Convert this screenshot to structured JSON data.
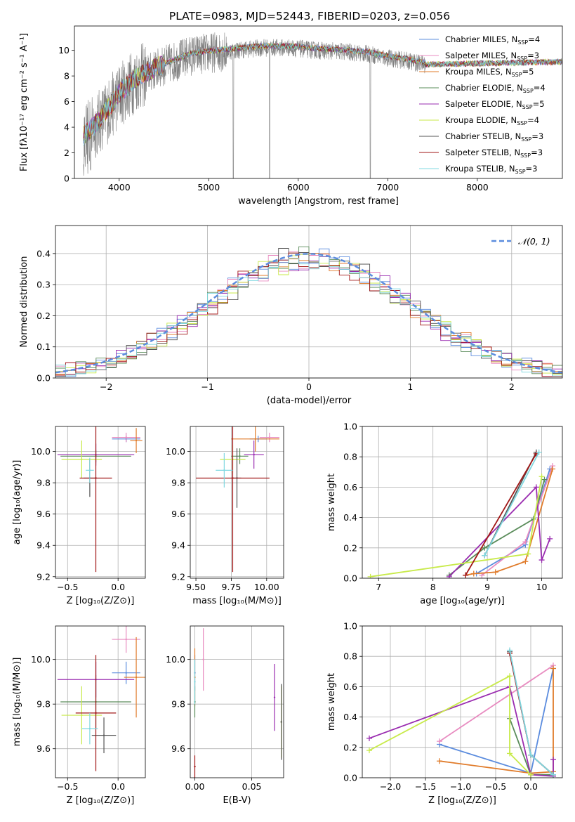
{
  "figure_title": "PLATE=0983, MJD=52443, FIBERID=0203, z=0.056",
  "colors": {
    "Chabrier MILES": "#5b8cde",
    "Salpeter MILES": "#e88bc0",
    "Kroupa MILES": "#e07b2a",
    "Chabrier ELODIE": "#5a8c5a",
    "Salpeter ELODIE": "#9a2cb0",
    "Kroupa ELODIE": "#c8ea4a",
    "Chabrier STELIB": "#555555",
    "Salpeter STELIB": "#a01515",
    "Kroupa STELIB": "#7fd8e0",
    "gaussian": "#5b8cde",
    "data": "#808080"
  },
  "chart_data": [
    {
      "type": "line",
      "title": "PLATE=0983, MJD=52443, FIBERID=0203, z=0.056",
      "xlabel": "wavelength [Angstrom, rest frame]",
      "ylabel": "Flux [fλ10⁻¹⁷ erg cm⁻² s⁻¹ A⁻¹]",
      "xlim": [
        3500,
        8950
      ],
      "ylim": [
        0,
        11.9
      ],
      "xticks": [
        4000,
        5000,
        6000,
        7000,
        8000
      ],
      "yticks": [
        0,
        2,
        4,
        6,
        8,
        10
      ],
      "legend": "top-right",
      "legend_entries": [
        {
          "label": "Chabrier MILES, N",
          "sub": "SSP",
          "tail": "=4"
        },
        {
          "label": "Salpeter MILES, N",
          "sub": "SSP",
          "tail": "=3"
        },
        {
          "label": "Kroupa MILES, N",
          "sub": "SSP",
          "tail": "=5"
        },
        {
          "label": "Chabrier ELODIE, N",
          "sub": "SSP",
          "tail": "=4"
        },
        {
          "label": "Salpeter ELODIE, N",
          "sub": "SSP",
          "tail": "=5"
        },
        {
          "label": "Kroupa ELODIE, N",
          "sub": "SSP",
          "tail": "=4"
        },
        {
          "label": "Chabrier STELIB, N",
          "sub": "SSP",
          "tail": "=3"
        },
        {
          "label": "Salpeter STELIB, N",
          "sub": "SSP",
          "tail": "=3"
        },
        {
          "label": "Kroupa STELIB, N",
          "sub": "SSP",
          "tail": "=3"
        }
      ],
      "spectrum_envelope": {
        "x": [
          3600,
          3750,
          3900,
          4000,
          4200,
          4500,
          4800,
          5000,
          5300,
          5600,
          5900,
          6200,
          6500,
          6800,
          7000,
          7200,
          7420
        ],
        "y": [
          3.2,
          4.2,
          5.5,
          6.5,
          7.8,
          8.8,
          9.6,
          9.8,
          10.0,
          10.2,
          10.2,
          10.0,
          9.9,
          9.7,
          9.4,
          9.2,
          8.9
        ]
      },
      "model_extent": {
        "x": [
          3600,
          7420,
          8950
        ],
        "y": [
          4.0,
          8.9,
          9.1
        ]
      }
    },
    {
      "type": "bar",
      "title": "",
      "xlabel": "(data-model)/error",
      "ylabel": "Normed distribution",
      "xlim": [
        -2.5,
        2.5
      ],
      "ylim": [
        0,
        0.49
      ],
      "xticks": [
        -2,
        -1,
        0,
        1,
        2
      ],
      "yticks": [
        0.0,
        0.1,
        0.2,
        0.3,
        0.4
      ],
      "legend": "top-right",
      "legend_entries": [
        "𝒩(0, 1)"
      ],
      "gaussian": {
        "mean": 0,
        "sigma": 1
      }
    },
    {
      "type": "scatter",
      "title": "",
      "xlabel": "Z [log₁₀(Z/Z⊙)]",
      "ylabel": "age  [log₁₀(age/yr)]",
      "xlim": [
        -0.62,
        0.27
      ],
      "ylim": [
        9.19,
        10.16
      ],
      "xticks": [
        -0.5,
        0.0
      ],
      "yticks": [
        9.2,
        9.4,
        9.6,
        9.8,
        10.0
      ],
      "points": [
        {
          "series": "Chabrier MILES",
          "x": 0.08,
          "y": 10.08,
          "xerr": 0.14,
          "yerr": 0.02
        },
        {
          "series": "Salpeter MILES",
          "x": 0.08,
          "y": 10.09,
          "xerr": 0.14,
          "yerr": 0.03
        },
        {
          "series": "Kroupa MILES",
          "x": 0.18,
          "y": 10.07,
          "xerr": 0.06,
          "yerr": 0.08
        },
        {
          "series": "Chabrier ELODIE",
          "x": -0.22,
          "y": 9.97,
          "xerr": 0.35,
          "yerr": 0.04
        },
        {
          "series": "Salpeter ELODIE",
          "x": -0.22,
          "y": 9.98,
          "xerr": 0.38,
          "yerr": 0.07
        },
        {
          "series": "Kroupa ELODIE",
          "x": -0.36,
          "y": 9.95,
          "xerr": 0.2,
          "yerr": 0.12
        },
        {
          "series": "Chabrier STELIB",
          "x": -0.28,
          "y": 9.83,
          "xerr": 0.06,
          "yerr": 0.12
        },
        {
          "series": "Salpeter STELIB",
          "x": -0.22,
          "y": 9.83,
          "xerr": 0.16,
          "yerr": 0.6
        },
        {
          "series": "Kroupa STELIB",
          "x": -0.28,
          "y": 9.88,
          "xerr": 0.04,
          "yerr": 0.08
        }
      ]
    },
    {
      "type": "scatter",
      "title": "",
      "xlabel": "mass [log₁₀(M/M⊙)]",
      "ylabel": "",
      "xlim": [
        9.46,
        10.12
      ],
      "ylim": [
        9.19,
        10.16
      ],
      "xticks": [
        9.5,
        9.75,
        10.0
      ],
      "yticks": [
        9.2,
        9.4,
        9.6,
        9.8,
        10.0
      ],
      "points": [
        {
          "series": "Chabrier MILES",
          "x": 9.94,
          "y": 10.08,
          "xerr": 0.06,
          "yerr": 0.02
        },
        {
          "series": "Salpeter MILES",
          "x": 10.02,
          "y": 10.09,
          "xerr": 0.07,
          "yerr": 0.03
        },
        {
          "series": "Kroupa MILES",
          "x": 9.92,
          "y": 10.08,
          "xerr": 0.17,
          "yerr": 0.08
        },
        {
          "series": "Chabrier ELODIE",
          "x": 9.81,
          "y": 9.97,
          "xerr": 0.06,
          "yerr": 0.05
        },
        {
          "series": "Salpeter ELODIE",
          "x": 9.91,
          "y": 9.98,
          "xerr": 0.07,
          "yerr": 0.09
        },
        {
          "series": "Kroupa ELODIE",
          "x": 9.76,
          "y": 9.95,
          "xerr": 0.09,
          "yerr": 0.09
        },
        {
          "series": "Chabrier STELIB",
          "x": 9.79,
          "y": 9.83,
          "xerr": 0.03,
          "yerr": 0.19
        },
        {
          "series": "Salpeter STELIB",
          "x": 9.76,
          "y": 9.83,
          "xerr": 0.26,
          "yerr": 0.6
        },
        {
          "series": "Kroupa STELIB",
          "x": 9.7,
          "y": 9.88,
          "xerr": 0.06,
          "yerr": 0.11
        }
      ]
    },
    {
      "type": "line",
      "title": "",
      "xlabel": "age  [log₁₀(age/yr)]",
      "ylabel": "mass weight",
      "xlim": [
        6.7,
        10.38
      ],
      "ylim": [
        0.0,
        1.0
      ],
      "xticks": [
        7,
        8,
        9,
        10
      ],
      "yticks": [
        0.0,
        0.2,
        0.4,
        0.6,
        0.8,
        1.0
      ],
      "series": [
        {
          "name": "Chabrier MILES",
          "x": [
            8.8,
            9.7,
            10.15
          ],
          "y": [
            0.03,
            0.22,
            0.72
          ]
        },
        {
          "name": "Salpeter MILES",
          "x": [
            8.9,
            9.7,
            10.2
          ],
          "y": [
            0.02,
            0.24,
            0.74
          ]
        },
        {
          "name": "Kroupa MILES",
          "x": [
            8.6,
            8.75,
            9.15,
            9.7,
            10.2
          ],
          "y": [
            0.02,
            0.03,
            0.04,
            0.11,
            0.72
          ]
        },
        {
          "name": "Chabrier ELODIE",
          "x": [
            8.3,
            8.95,
            9.85,
            10.05
          ],
          "y": [
            0.02,
            0.2,
            0.39,
            0.65
          ]
        },
        {
          "name": "Salpeter ELODIE",
          "x": [
            8.3,
            9.9,
            10.0,
            10.15
          ],
          "y": [
            0.01,
            0.6,
            0.12,
            0.26
          ]
        },
        {
          "name": "Kroupa ELODIE",
          "x": [
            6.85,
            9.75,
            10.0
          ],
          "y": [
            0.01,
            0.16,
            0.67
          ]
        },
        {
          "name": "Chabrier STELIB",
          "x": [
            8.95,
            9.9
          ],
          "y": [
            0.15,
            0.83
          ]
        },
        {
          "name": "Salpeter STELIB",
          "x": [
            8.6,
            9.9
          ],
          "y": [
            0.02,
            0.82
          ]
        },
        {
          "name": "Kroupa STELIB",
          "x": [
            8.95,
            9.95
          ],
          "y": [
            0.15,
            0.83
          ]
        }
      ]
    },
    {
      "type": "scatter",
      "title": "",
      "xlabel": "Z [log₁₀(Z/Z⊙)]",
      "ylabel": "mass [log₁₀(M/M⊙)]",
      "xlim": [
        -0.62,
        0.27
      ],
      "ylim": [
        9.47,
        10.15
      ],
      "xticks": [
        -0.5,
        0.0
      ],
      "yticks": [
        9.6,
        9.8,
        10.0
      ],
      "points": [
        {
          "series": "Chabrier MILES",
          "x": 0.08,
          "y": 9.94,
          "xerr": 0.14,
          "yerr": 0.05
        },
        {
          "series": "Salpeter MILES",
          "x": 0.08,
          "y": 10.09,
          "xerr": 0.14,
          "yerr": 0.06
        },
        {
          "series": "Kroupa MILES",
          "x": 0.18,
          "y": 9.92,
          "xerr": 0.12,
          "yerr": 0.18
        },
        {
          "series": "Chabrier ELODIE",
          "x": -0.22,
          "y": 9.81,
          "xerr": 0.35,
          "yerr": 0.12
        },
        {
          "series": "Salpeter ELODIE",
          "x": -0.22,
          "y": 9.91,
          "xerr": 0.38,
          "yerr": 0.08
        },
        {
          "series": "Kroupa ELODIE",
          "x": -0.36,
          "y": 9.75,
          "xerr": 0.2,
          "yerr": 0.13
        },
        {
          "series": "Chabrier STELIB",
          "x": -0.14,
          "y": 9.66,
          "xerr": 0.12,
          "yerr": 0.08
        },
        {
          "series": "Salpeter STELIB",
          "x": -0.22,
          "y": 9.76,
          "xerr": 0.2,
          "yerr": 0.26
        },
        {
          "series": "Kroupa STELIB",
          "x": -0.28,
          "y": 9.69,
          "xerr": 0.08,
          "yerr": 0.07
        }
      ]
    },
    {
      "type": "scatter",
      "title": "",
      "xlabel": "E(B-V)",
      "ylabel": "",
      "xlim": [
        -0.004,
        0.078
      ],
      "ylim": [
        9.47,
        10.15
      ],
      "xticks": [
        0.0,
        0.05
      ],
      "yticks": [
        9.6,
        9.8,
        10.0
      ],
      "points": [
        {
          "series": "Chabrier MILES",
          "x": 0.0,
          "y": 9.94,
          "xerr": 0,
          "yerr": 0.08
        },
        {
          "series": "Salpeter MILES",
          "x": 0.0075,
          "y": 10.0,
          "xerr": 0,
          "yerr": 0.14
        },
        {
          "series": "Kroupa MILES",
          "x": 0.0,
          "y": 9.92,
          "xerr": 0,
          "yerr": 0.13
        },
        {
          "series": "Chabrier ELODIE",
          "x": 0.0,
          "y": 9.81,
          "xerr": 0,
          "yerr": 0.07
        },
        {
          "series": "Salpeter ELODIE",
          "x": 0.07,
          "y": 9.83,
          "xerr": 0,
          "yerr": 0.15
        },
        {
          "series": "Kroupa ELODIE",
          "x": 0.076,
          "y": 9.72,
          "xerr": 0,
          "yerr": 0.16
        },
        {
          "series": "Chabrier STELIB",
          "x": 0.076,
          "y": 9.72,
          "xerr": 0,
          "yerr": 0.17
        },
        {
          "series": "Salpeter STELIB",
          "x": 0.0,
          "y": 9.52,
          "xerr": 0,
          "yerr": 0.05
        },
        {
          "series": "Kroupa STELIB",
          "x": 0.0,
          "y": 9.9,
          "xerr": 0,
          "yerr": 0.1
        }
      ]
    },
    {
      "type": "line",
      "title": "",
      "xlabel": "Z [log₁₀(Z/Z⊙)]",
      "ylabel": "mass weight",
      "xlim": [
        -2.4,
        0.45
      ],
      "ylim": [
        0.0,
        1.0
      ],
      "xticks": [
        -2.0,
        -1.5,
        -1.0,
        -0.5,
        0.0
      ],
      "yticks": [
        0.0,
        0.2,
        0.4,
        0.6,
        0.8,
        1.0
      ],
      "series": [
        {
          "name": "Chabrier MILES",
          "x": [
            -1.3,
            0.0,
            0.32
          ],
          "y": [
            0.22,
            0.03,
            0.72
          ]
        },
        {
          "name": "Salpeter MILES",
          "x": [
            -1.3,
            0.32
          ],
          "y": [
            0.24,
            0.74
          ]
        },
        {
          "name": "Kroupa MILES",
          "x": [
            -1.3,
            0.0,
            0.32,
            0.32
          ],
          "y": [
            0.11,
            0.03,
            0.04,
            0.72
          ]
        },
        {
          "name": "Chabrier ELODIE",
          "x": [
            -0.3,
            0.0,
            0.32
          ],
          "y": [
            0.39,
            0.02,
            0.02
          ]
        },
        {
          "name": "Salpeter ELODIE",
          "x": [
            -2.3,
            -0.3,
            0.0,
            0.32,
            0.32
          ],
          "y": [
            0.26,
            0.6,
            0.02,
            0.01,
            0.12
          ]
        },
        {
          "name": "Kroupa ELODIE",
          "x": [
            -2.3,
            -0.3,
            -0.3,
            0.0
          ],
          "y": [
            0.18,
            0.67,
            0.16,
            0.02
          ]
        },
        {
          "name": "Chabrier STELIB",
          "x": [
            -0.3,
            0.0,
            0.32
          ],
          "y": [
            0.83,
            0.15,
            0.02
          ]
        },
        {
          "name": "Salpeter STELIB",
          "x": [
            -0.3,
            0.0,
            0.32
          ],
          "y": [
            0.82,
            0.15,
            0.02
          ]
        },
        {
          "name": "Kroupa STELIB",
          "x": [
            -0.3,
            0.0,
            0.32
          ],
          "y": [
            0.84,
            0.15,
            0.02
          ]
        }
      ]
    }
  ]
}
